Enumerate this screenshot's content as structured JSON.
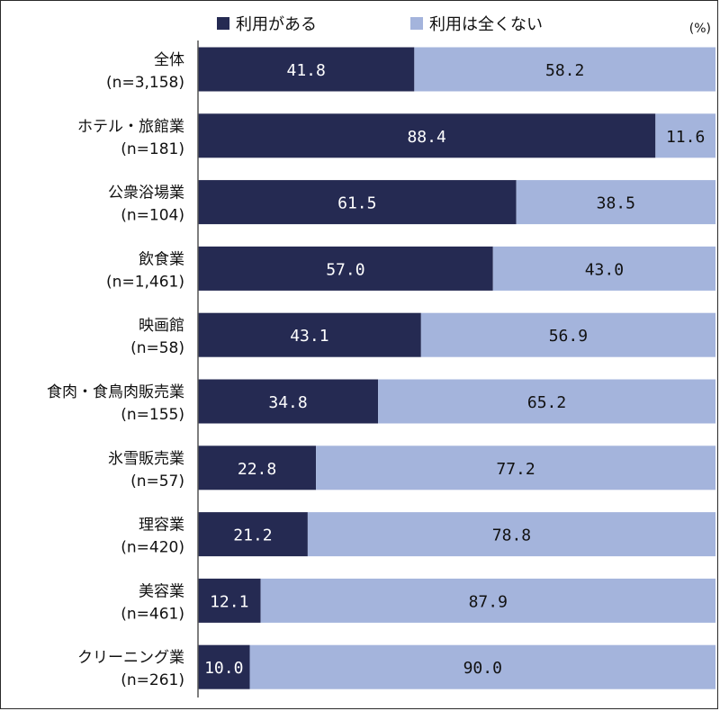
{
  "chart_data": {
    "type": "bar",
    "orientation": "horizontal",
    "stacked": true,
    "unit_label": "(%)",
    "categories": [
      {
        "name": "全体",
        "n": "(n=3,158)"
      },
      {
        "name": "ホテル・旅館業",
        "n": "(n=181)"
      },
      {
        "name": "公衆浴場業",
        "n": "(n=104)"
      },
      {
        "name": "飲食業",
        "n": "(n=1,461)"
      },
      {
        "name": "映画館",
        "n": "(n=58)"
      },
      {
        "name": "食肉・食鳥肉販売業",
        "n": "(n=155)"
      },
      {
        "name": "氷雪販売業",
        "n": "(n=57)"
      },
      {
        "name": "理容業",
        "n": "(n=420)"
      },
      {
        "name": "美容業",
        "n": "(n=461)"
      },
      {
        "name": "クリーニング業",
        "n": "(n=261)"
      }
    ],
    "series": [
      {
        "name": "利用がある",
        "color": "#252a52",
        "label_color": "#ffffff",
        "values": [
          41.8,
          88.4,
          61.5,
          57.0,
          43.1,
          34.8,
          22.8,
          21.2,
          12.1,
          10.0
        ],
        "labels": [
          "41.8",
          "88.4",
          "61.5",
          "57.0",
          "43.1",
          "34.8",
          "22.8",
          "21.2",
          "12.1",
          "10.0"
        ]
      },
      {
        "name": "利用は全くない",
        "color": "#a4b4dc",
        "label_color": "#111111",
        "values": [
          58.2,
          11.6,
          38.5,
          43.0,
          56.9,
          65.2,
          77.2,
          78.8,
          87.9,
          90.0
        ],
        "labels": [
          "58.2",
          "11.6",
          "38.5",
          "43.0",
          "56.9",
          "65.2",
          "77.2",
          "78.8",
          "87.9",
          "90.0"
        ]
      }
    ],
    "xlim": [
      0,
      100
    ],
    "legend_position": "top"
  }
}
